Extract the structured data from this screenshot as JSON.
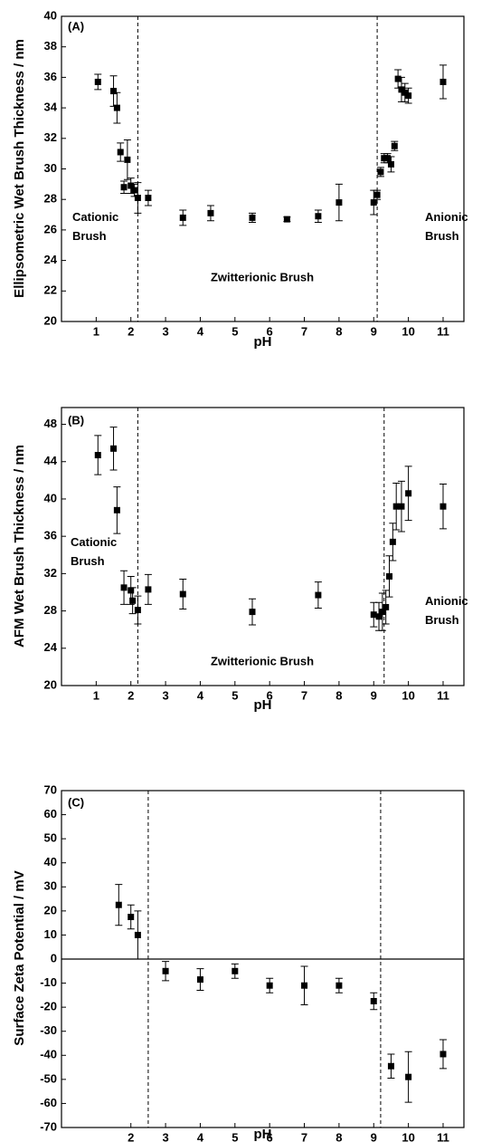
{
  "chart_data": [
    {
      "type": "scatter",
      "xlabel": "pH",
      "ylabel": "Ellipsometric Wet Brush Thickness / nm",
      "annotations": [
        "(A)",
        "Cationic Brush",
        "Zwitterionic Brush",
        "Anionic Brush"
      ],
      "x": [
        1.05,
        1.5,
        1.6,
        1.7,
        1.8,
        1.9,
        2.0,
        2.1,
        2.2,
        2.5,
        3.5,
        4.3,
        5.5,
        6.5,
        7.4,
        8.0,
        9.0,
        9.1,
        9.2,
        9.3,
        9.4,
        9.5,
        9.6,
        9.7,
        9.8,
        9.9,
        10.0,
        11.0
      ],
      "values": [
        35.7,
        35.1,
        34.0,
        31.1,
        28.8,
        30.6,
        28.9,
        28.6,
        28.1,
        28.1,
        26.8,
        27.1,
        26.8,
        26.7,
        26.9,
        27.8,
        27.8,
        28.3,
        29.8,
        30.7,
        30.7,
        30.3,
        31.5,
        35.9,
        35.2,
        35.0,
        34.8,
        35.7
      ],
      "errors": [
        0.5,
        1.0,
        1.0,
        0.6,
        0.4,
        1.3,
        0.5,
        0.4,
        1.0,
        0.5,
        0.5,
        0.5,
        0.3,
        0.15,
        0.4,
        1.2,
        0.8,
        0.3,
        0.3,
        0.3,
        0.3,
        0.5,
        0.3,
        0.6,
        0.8,
        0.6,
        0.5,
        1.1
      ],
      "color": "#000000",
      "vlines": [
        2.2,
        9.1
      ],
      "xlim": [
        0,
        11.6
      ],
      "xticks": [
        1,
        2,
        3,
        4,
        5,
        6,
        7,
        8,
        9,
        10,
        11
      ],
      "ylim": [
        20,
        40
      ],
      "yticks": [
        20,
        22,
        24,
        26,
        28,
        30,
        32,
        34,
        36,
        38,
        40
      ]
    },
    {
      "type": "scatter",
      "xlabel": "pH",
      "ylabel": "AFM Wet Brush Thickness / nm",
      "annotations": [
        "(B)",
        "Cationic Brush",
        "Zwitterionic Brush",
        "Anionic Brush"
      ],
      "x": [
        1.05,
        1.5,
        1.6,
        1.8,
        2.0,
        2.05,
        2.2,
        2.5,
        3.5,
        5.5,
        7.4,
        9.0,
        9.15,
        9.25,
        9.35,
        9.45,
        9.55,
        9.65,
        9.8,
        10.0,
        11.0
      ],
      "values": [
        44.7,
        45.4,
        38.8,
        30.5,
        30.2,
        29.1,
        28.1,
        30.3,
        29.8,
        27.9,
        29.7,
        27.6,
        27.4,
        27.9,
        28.4,
        31.7,
        35.4,
        39.2,
        39.2,
        40.6,
        39.2
      ],
      "errors": [
        2.1,
        2.3,
        2.5,
        1.8,
        1.5,
        1.4,
        1.5,
        1.6,
        1.6,
        1.4,
        1.4,
        1.3,
        1.5,
        2.0,
        1.8,
        2.2,
        2.0,
        2.5,
        2.7,
        2.9,
        2.4
      ],
      "color": "#000000",
      "vlines": [
        2.2,
        9.3
      ],
      "xlim": [
        0,
        11.6
      ],
      "xticks": [
        1,
        2,
        3,
        4,
        5,
        6,
        7,
        8,
        9,
        10,
        11
      ],
      "ylim": [
        20,
        49.8
      ],
      "yticks": [
        20,
        24,
        28,
        32,
        36,
        40,
        44,
        48
      ]
    },
    {
      "type": "scatter",
      "xlabel": "pH",
      "ylabel": "Surface Zeta Potential / mV",
      "annotations": [
        "(C)"
      ],
      "x": [
        1.65,
        2.0,
        2.2,
        3.0,
        4.0,
        5.0,
        6.0,
        7.0,
        8.0,
        9.0,
        9.5,
        10.0,
        11.0
      ],
      "values": [
        22.5,
        17.5,
        10,
        -5,
        -8.5,
        -5,
        -11,
        -11,
        -11,
        -17.5,
        -44.5,
        -49,
        -39.5
      ],
      "errors": [
        8.5,
        5,
        10,
        4,
        4.5,
        3,
        3,
        8,
        3,
        3.5,
        5,
        10.5,
        6
      ],
      "color": "#000000",
      "vlines": [
        2.5,
        9.2
      ],
      "hlines": [
        0
      ],
      "xlim": [
        0,
        11.6
      ],
      "xticks": [
        2,
        3,
        4,
        5,
        6,
        7,
        8,
        9,
        10,
        11
      ],
      "ylim": [
        -70,
        70
      ],
      "yticks": [
        -70,
        -60,
        -50,
        -40,
        -30,
        -20,
        -10,
        0,
        10,
        20,
        30,
        40,
        50,
        60,
        70
      ]
    }
  ]
}
